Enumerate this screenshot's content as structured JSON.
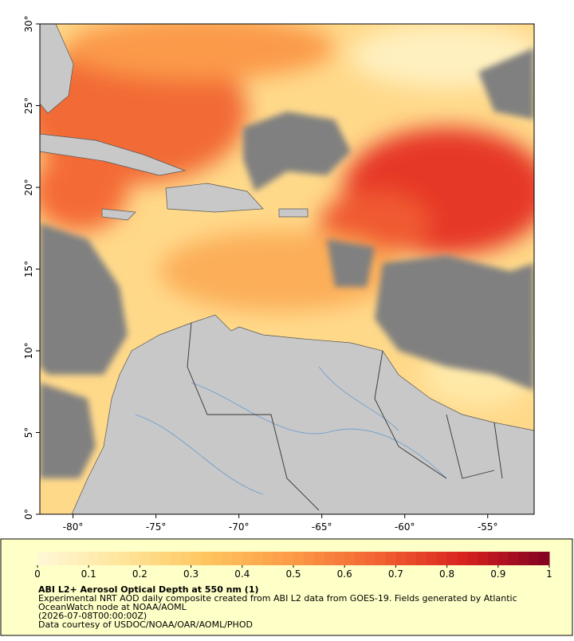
{
  "map": {
    "xlim": [
      -82,
      -52.2
    ],
    "ylim": [
      0,
      30
    ],
    "xticks": [
      {
        "value": -80,
        "label": "-80°"
      },
      {
        "value": -75,
        "label": "-75°"
      },
      {
        "value": -70,
        "label": "-70°"
      },
      {
        "value": -65,
        "label": "-65°"
      },
      {
        "value": -60,
        "label": "-60°"
      },
      {
        "value": -55,
        "label": "-55°"
      }
    ],
    "yticks": [
      {
        "value": 0,
        "label": "0°"
      },
      {
        "value": 5,
        "label": "5°"
      },
      {
        "value": 10,
        "label": "10°"
      },
      {
        "value": 15,
        "label": "15°"
      },
      {
        "value": 20,
        "label": "20°"
      },
      {
        "value": 25,
        "label": "25°"
      },
      {
        "value": 30,
        "label": "30°"
      }
    ]
  },
  "colorbar": {
    "range": [
      0,
      1
    ],
    "ticks": [
      0,
      0.1,
      0.2,
      0.3,
      0.4,
      0.5,
      0.6,
      0.7,
      0.8,
      0.9,
      1
    ],
    "colors": [
      "#fff8d8",
      "#ffe59a",
      "#fec45e",
      "#fd9a45",
      "#f26232",
      "#d8221f",
      "#800020"
    ]
  },
  "caption": {
    "title": "ABI L2+ Aerosol Optical Depth at 550 nm (1)",
    "lines": [
      "Experimental NRT AOD daily composite created from ABI L2 data from GOES-19. Fields generated by Atlantic",
      "OceanWatch node at NOAA/AOML",
      "(2026-07-08T00:00:00Z)",
      "Data courtesy of USDOC/NOAA/OAR/AOML/PHOD"
    ]
  }
}
